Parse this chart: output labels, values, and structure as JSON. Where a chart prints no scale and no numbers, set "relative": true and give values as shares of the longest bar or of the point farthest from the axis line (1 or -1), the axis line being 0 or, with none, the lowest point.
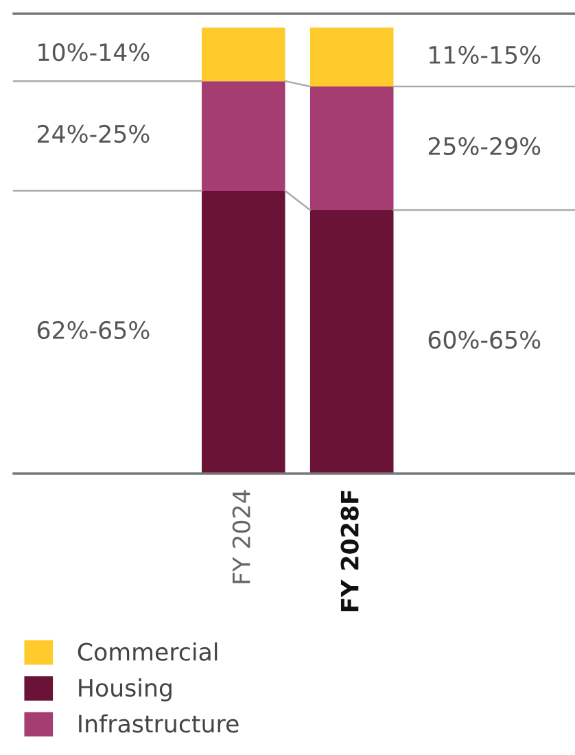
{
  "chart_data": {
    "type": "bar",
    "stacked": true,
    "relative": true,
    "categories": [
      "FY 2024",
      "FY 2028F"
    ],
    "series": [
      {
        "name": "Housing",
        "color": "#6b1237",
        "values": [
          0.634,
          0.591
        ]
      },
      {
        "name": "Infrastructure",
        "color": "#a63d72",
        "values": [
          0.246,
          0.277
        ]
      },
      {
        "name": "Commercial",
        "color": "#ffca2c",
        "values": [
          0.12,
          0.132
        ]
      }
    ],
    "annotations": [
      "62%-65%",
      "24%-25%",
      "10%-14%",
      "60%-65%",
      "25%-29%",
      "11%-15%"
    ],
    "legend": "bottom left",
    "grid": false
  }
}
